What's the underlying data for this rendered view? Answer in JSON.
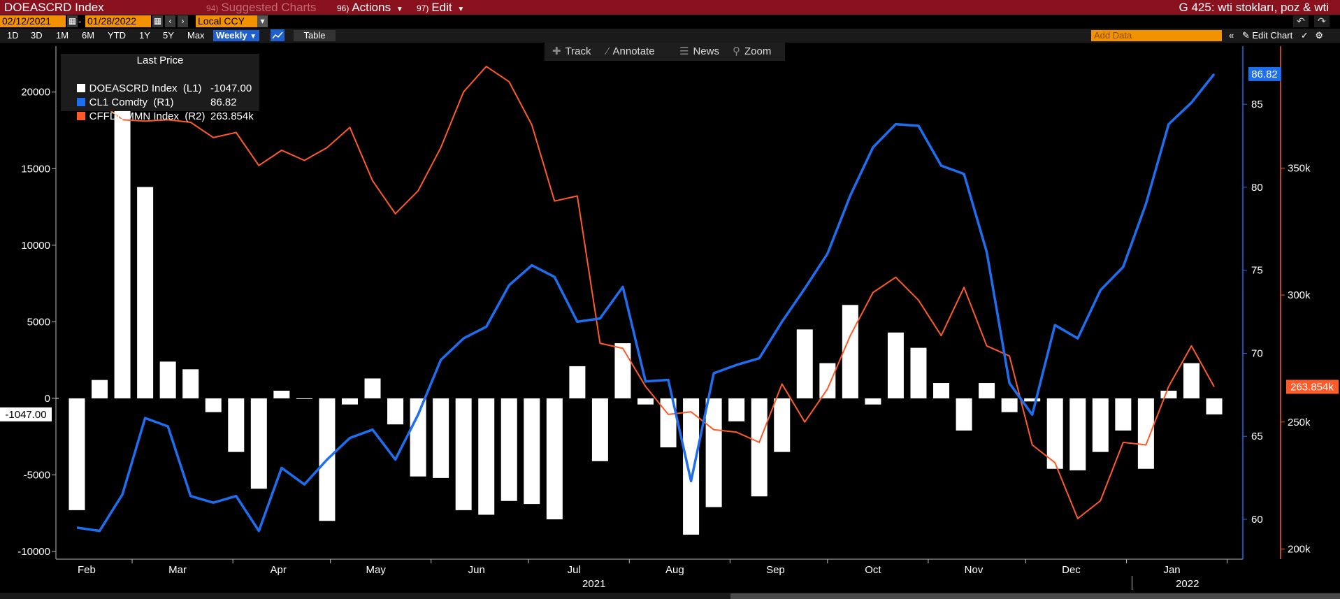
{
  "toolbar": {
    "ticker": "DOEASCRD Index",
    "suggested_num": "94)",
    "suggested_label": "Suggested Charts",
    "actions_num": "96)",
    "actions_label": "Actions",
    "edit_num": "97)",
    "edit_label": "Edit",
    "chart_title": "G 425: wti stokları, poz & wti",
    "start_date": "02/12/2021",
    "end_date": "01/28/2022",
    "currency": "Local CCY",
    "periods": [
      "1D",
      "3D",
      "1M",
      "6M",
      "YTD",
      "1Y",
      "5Y",
      "Max"
    ],
    "frequency": "Weekly",
    "table_label": "Table",
    "add_data_placeholder": "Add Data",
    "edit_chart_label": "Edit Chart",
    "tools": [
      "Track",
      "Annotate",
      "News",
      "Zoom"
    ]
  },
  "legend": {
    "title": "Last Price",
    "rows": [
      {
        "name": "DOEASCRD Index  (L1)",
        "value": "-1047.00",
        "color": "#ffffff"
      },
      {
        "name": "CL1 Comdty  (R1)",
        "value": "86.82",
        "color": "#1e6ef0"
      },
      {
        "name": "CFFDQMMN Index  (R2)",
        "value": "263.854k",
        "color": "#ff5a28"
      }
    ]
  },
  "chart_data": {
    "type": "bar+line",
    "x": [
      "2021-02-12",
      "2021-02-19",
      "2021-02-26",
      "2021-03-05",
      "2021-03-12",
      "2021-03-19",
      "2021-03-26",
      "2021-04-02",
      "2021-04-09",
      "2021-04-16",
      "2021-04-23",
      "2021-04-30",
      "2021-05-07",
      "2021-05-14",
      "2021-05-21",
      "2021-05-28",
      "2021-06-04",
      "2021-06-11",
      "2021-06-18",
      "2021-06-25",
      "2021-07-02",
      "2021-07-09",
      "2021-07-16",
      "2021-07-23",
      "2021-07-30",
      "2021-08-06",
      "2021-08-13",
      "2021-08-20",
      "2021-08-27",
      "2021-09-03",
      "2021-09-10",
      "2021-09-17",
      "2021-09-24",
      "2021-10-01",
      "2021-10-08",
      "2021-10-15",
      "2021-10-22",
      "2021-10-29",
      "2021-11-05",
      "2021-11-12",
      "2021-11-19",
      "2021-11-26",
      "2021-12-03",
      "2021-12-10",
      "2021-12-17",
      "2021-12-24",
      "2021-12-31",
      "2022-01-07",
      "2022-01-14",
      "2022-01-21",
      "2022-01-28"
    ],
    "series": [
      {
        "name": "DOEASCRD Index",
        "axis": "L1",
        "type": "bar",
        "color": "#ffffff",
        "values": [
          -7300,
          1200,
          21500,
          13800,
          2400,
          1900,
          -900,
          -3500,
          -5900,
          500,
          0,
          -8000,
          -400,
          1300,
          -1700,
          -5100,
          -5200,
          -7300,
          -7600,
          -6700,
          -6900,
          -7900,
          2100,
          -4100,
          3600,
          -400,
          -3200,
          -8900,
          -7100,
          -1500,
          -6400,
          -3500,
          4500,
          2300,
          6100,
          -400,
          4300,
          3300,
          1000,
          -2100,
          1000,
          -900,
          -200,
          -4600,
          -4700,
          -3500,
          -2100,
          -4600,
          500,
          2300,
          -1047
        ]
      },
      {
        "name": "CL1 Comdty",
        "axis": "R1",
        "type": "line",
        "color": "#1e6ef0",
        "values": [
          59.5,
          59.3,
          61.5,
          66.1,
          65.6,
          61.4,
          61.0,
          61.4,
          59.3,
          63.1,
          62.1,
          63.6,
          64.9,
          65.4,
          63.6,
          66.3,
          69.6,
          70.9,
          71.6,
          74.1,
          75.3,
          74.6,
          71.9,
          72.1,
          74.0,
          68.3,
          68.4,
          62.3,
          68.8,
          69.3,
          69.7,
          71.9,
          73.9,
          76.0,
          79.5,
          82.4,
          83.8,
          83.7,
          81.3,
          80.8,
          76.1,
          68.2,
          66.3,
          71.7,
          70.9,
          73.8,
          75.2,
          79.0,
          83.8,
          85.1,
          86.82
        ]
      },
      {
        "name": "CFFDQMMN Index",
        "axis": "R2",
        "type": "line",
        "color": "#ff5a28",
        "values": [
          377,
          376,
          369,
          368.5,
          369,
          368,
          362,
          364,
          351,
          357,
          353,
          358,
          366,
          345,
          332,
          341,
          358,
          380,
          390,
          384,
          367,
          337,
          339,
          281,
          279,
          264,
          253,
          254,
          247,
          246,
          242,
          265,
          250,
          263,
          284,
          301,
          307,
          298,
          284,
          303,
          280,
          276,
          241,
          234,
          212,
          219,
          242,
          241,
          264,
          280,
          263.854
        ]
      }
    ],
    "x_tick_labels": [
      "Feb",
      "Mar",
      "Apr",
      "May",
      "Jun",
      "Jul",
      "Aug",
      "Sep",
      "Oct",
      "Nov",
      "Dec",
      "Jan"
    ],
    "year_labels": [
      "2021",
      "2022"
    ],
    "y_left": {
      "ticks": [
        20000,
        15000,
        10000,
        5000,
        0,
        -5000,
        -10000
      ],
      "range": [
        -10500,
        23000
      ]
    },
    "y_r1": {
      "ticks": [
        85,
        80,
        75,
        70,
        65,
        60
      ],
      "range": [
        57.6,
        88.5
      ]
    },
    "y_r2": {
      "ticks": [
        350,
        300,
        250,
        200
      ],
      "tick_labels": [
        "350k",
        "300k",
        "250k",
        "200k"
      ],
      "range": [
        196,
        398
      ]
    },
    "last_labels": {
      "L1": "-1047.00",
      "R1": "86.82",
      "R2": "263.854k"
    },
    "grid": false
  }
}
